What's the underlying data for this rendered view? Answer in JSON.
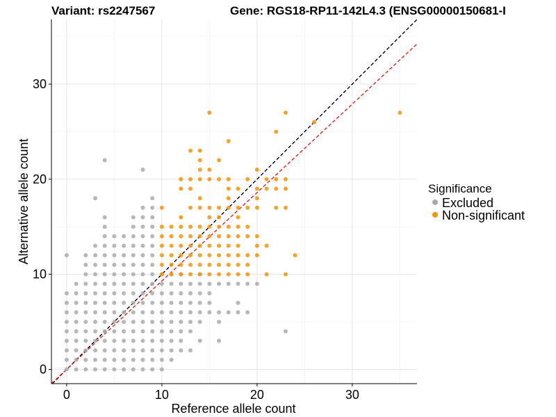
{
  "chart_data": {
    "type": "scatter",
    "title_left": "Variant: rs2247567",
    "title_right": "Gene: RGS18-RP11-142L4.3 (ENSG00000150681-I",
    "xlabel": "Reference allele count",
    "ylabel": "Alternative allele count",
    "xlim": [
      -1.6,
      36.8
    ],
    "ylim": [
      -1.5,
      36.8
    ],
    "xticks": [
      0,
      10,
      20,
      30
    ],
    "yticks": [
      0,
      10,
      20,
      30
    ],
    "grid": true,
    "legend": {
      "title": "Significance",
      "position": "right",
      "items": [
        {
          "label": "Excluded",
          "color": "#aaaaaa"
        },
        {
          "label": "Non-significant",
          "color": "#f5940a"
        }
      ]
    },
    "reference_lines": [
      {
        "color": "#000000",
        "style": "dashed",
        "slope": 1.0,
        "intercept": 0
      },
      {
        "color": "#e8231f",
        "style": "dashed",
        "slope": 0.93,
        "intercept": 0
      }
    ],
    "series": [
      {
        "name": "Excluded",
        "color": "#aaaaaa",
        "points": [
          [
            0,
            12
          ],
          [
            0,
            8
          ],
          [
            0,
            7
          ],
          [
            0,
            6
          ],
          [
            0,
            5
          ],
          [
            0,
            4
          ],
          [
            0,
            3
          ],
          [
            0,
            2
          ],
          [
            0,
            1
          ],
          [
            0,
            0
          ],
          [
            1,
            9
          ],
          [
            1,
            8
          ],
          [
            1,
            7
          ],
          [
            1,
            6
          ],
          [
            1,
            5
          ],
          [
            1,
            4
          ],
          [
            1,
            3
          ],
          [
            1,
            2
          ],
          [
            1,
            1
          ],
          [
            1,
            0
          ],
          [
            2,
            12
          ],
          [
            2,
            11
          ],
          [
            2,
            10
          ],
          [
            2,
            9
          ],
          [
            2,
            8
          ],
          [
            2,
            7
          ],
          [
            2,
            6
          ],
          [
            2,
            5
          ],
          [
            2,
            4
          ],
          [
            2,
            3
          ],
          [
            2,
            2
          ],
          [
            2,
            1
          ],
          [
            2,
            0
          ],
          [
            3,
            18
          ],
          [
            3,
            13
          ],
          [
            3,
            12
          ],
          [
            3,
            11
          ],
          [
            3,
            10
          ],
          [
            3,
            9
          ],
          [
            3,
            8
          ],
          [
            3,
            7
          ],
          [
            3,
            6
          ],
          [
            3,
            5
          ],
          [
            3,
            4
          ],
          [
            3,
            3
          ],
          [
            3,
            2
          ],
          [
            3,
            1
          ],
          [
            3,
            0
          ],
          [
            4,
            22
          ],
          [
            4,
            16
          ],
          [
            4,
            15
          ],
          [
            4,
            14
          ],
          [
            4,
            13
          ],
          [
            4,
            12
          ],
          [
            4,
            11
          ],
          [
            4,
            10
          ],
          [
            4,
            9
          ],
          [
            4,
            8
          ],
          [
            4,
            7
          ],
          [
            4,
            6
          ],
          [
            4,
            5
          ],
          [
            4,
            4
          ],
          [
            4,
            3
          ],
          [
            4,
            2
          ],
          [
            4,
            1
          ],
          [
            4,
            0
          ],
          [
            5,
            14
          ],
          [
            5,
            13
          ],
          [
            5,
            12
          ],
          [
            5,
            11
          ],
          [
            5,
            10
          ],
          [
            5,
            9
          ],
          [
            5,
            8
          ],
          [
            5,
            7
          ],
          [
            5,
            6
          ],
          [
            5,
            5
          ],
          [
            5,
            4
          ],
          [
            5,
            3
          ],
          [
            5,
            2
          ],
          [
            5,
            1
          ],
          [
            5,
            0
          ],
          [
            6,
            14
          ],
          [
            6,
            13
          ],
          [
            6,
            12
          ],
          [
            6,
            11
          ],
          [
            6,
            10
          ],
          [
            6,
            9
          ],
          [
            6,
            8
          ],
          [
            6,
            7
          ],
          [
            6,
            6
          ],
          [
            6,
            5
          ],
          [
            6,
            4
          ],
          [
            6,
            3
          ],
          [
            6,
            2
          ],
          [
            6,
            1
          ],
          [
            6,
            0
          ],
          [
            7,
            16
          ],
          [
            7,
            15
          ],
          [
            7,
            14
          ],
          [
            7,
            13
          ],
          [
            7,
            12
          ],
          [
            7,
            11
          ],
          [
            7,
            10
          ],
          [
            7,
            9
          ],
          [
            7,
            8
          ],
          [
            7,
            7
          ],
          [
            7,
            6
          ],
          [
            7,
            5
          ],
          [
            7,
            4
          ],
          [
            7,
            3
          ],
          [
            7,
            2
          ],
          [
            7,
            1
          ],
          [
            7,
            0
          ],
          [
            8,
            21
          ],
          [
            8,
            17
          ],
          [
            8,
            16
          ],
          [
            8,
            15
          ],
          [
            8,
            14
          ],
          [
            8,
            13
          ],
          [
            8,
            12
          ],
          [
            8,
            11
          ],
          [
            8,
            10
          ],
          [
            8,
            9
          ],
          [
            8,
            8
          ],
          [
            8,
            7
          ],
          [
            8,
            6
          ],
          [
            8,
            5
          ],
          [
            8,
            4
          ],
          [
            8,
            3
          ],
          [
            8,
            2
          ],
          [
            8,
            1
          ],
          [
            8,
            0
          ],
          [
            9,
            18
          ],
          [
            9,
            17
          ],
          [
            9,
            16
          ],
          [
            9,
            15
          ],
          [
            9,
            14
          ],
          [
            9,
            13
          ],
          [
            9,
            12
          ],
          [
            9,
            11
          ],
          [
            9,
            10
          ],
          [
            9,
            9
          ],
          [
            9,
            8
          ],
          [
            9,
            7
          ],
          [
            9,
            6
          ],
          [
            9,
            5
          ],
          [
            9,
            4
          ],
          [
            9,
            3
          ],
          [
            9,
            2
          ],
          [
            9,
            1
          ],
          [
            9,
            0
          ],
          [
            10,
            10
          ],
          [
            10,
            9
          ],
          [
            10,
            8
          ],
          [
            10,
            7
          ],
          [
            10,
            6
          ],
          [
            10,
            5
          ],
          [
            10,
            4
          ],
          [
            10,
            3
          ],
          [
            10,
            2
          ],
          [
            10,
            1
          ],
          [
            10,
            0
          ],
          [
            11,
            10
          ],
          [
            11,
            9
          ],
          [
            11,
            8
          ],
          [
            11,
            7
          ],
          [
            11,
            6
          ],
          [
            11,
            5
          ],
          [
            11,
            4
          ],
          [
            11,
            3
          ],
          [
            11,
            2
          ],
          [
            11,
            1
          ],
          [
            12,
            10
          ],
          [
            12,
            9
          ],
          [
            12,
            8
          ],
          [
            12,
            7
          ],
          [
            12,
            6
          ],
          [
            12,
            5
          ],
          [
            12,
            4
          ],
          [
            12,
            3
          ],
          [
            12,
            2
          ],
          [
            13,
            9
          ],
          [
            13,
            8
          ],
          [
            13,
            7
          ],
          [
            13,
            6
          ],
          [
            13,
            5
          ],
          [
            13,
            4
          ],
          [
            13,
            2
          ],
          [
            14,
            10
          ],
          [
            14,
            9
          ],
          [
            14,
            8
          ],
          [
            14,
            7
          ],
          [
            14,
            6
          ],
          [
            14,
            5
          ],
          [
            14,
            3
          ],
          [
            15,
            9
          ],
          [
            15,
            8
          ],
          [
            15,
            7
          ],
          [
            15,
            6
          ],
          [
            16,
            9
          ],
          [
            16,
            6
          ],
          [
            16,
            5
          ],
          [
            16,
            3
          ],
          [
            17,
            9
          ],
          [
            17,
            6
          ],
          [
            18,
            9
          ],
          [
            18,
            7
          ],
          [
            18,
            6
          ],
          [
            19,
            9
          ],
          [
            19,
            6
          ],
          [
            20,
            9
          ],
          [
            23,
            4
          ]
        ]
      },
      {
        "name": "Non-significant",
        "color": "#f5940a",
        "points": [
          [
            10,
            17
          ],
          [
            10,
            15
          ],
          [
            10,
            14
          ],
          [
            10,
            13
          ],
          [
            10,
            12
          ],
          [
            10,
            11
          ],
          [
            10,
            10
          ],
          [
            11,
            15
          ],
          [
            11,
            14
          ],
          [
            11,
            13
          ],
          [
            11,
            12
          ],
          [
            11,
            11
          ],
          [
            11,
            10
          ],
          [
            12,
            20
          ],
          [
            12,
            19
          ],
          [
            12,
            16
          ],
          [
            12,
            15
          ],
          [
            12,
            14
          ],
          [
            12,
            13
          ],
          [
            12,
            12
          ],
          [
            12,
            11
          ],
          [
            12,
            10
          ],
          [
            13,
            23
          ],
          [
            13,
            20
          ],
          [
            13,
            19
          ],
          [
            13,
            17
          ],
          [
            13,
            15
          ],
          [
            13,
            14
          ],
          [
            13,
            13
          ],
          [
            13,
            12
          ],
          [
            13,
            11
          ],
          [
            13,
            10
          ],
          [
            14,
            23
          ],
          [
            14,
            22
          ],
          [
            14,
            21
          ],
          [
            14,
            20
          ],
          [
            14,
            18
          ],
          [
            14,
            17
          ],
          [
            14,
            15
          ],
          [
            14,
            14
          ],
          [
            14,
            13
          ],
          [
            14,
            12
          ],
          [
            14,
            11
          ],
          [
            14,
            10
          ],
          [
            15,
            27
          ],
          [
            15,
            21
          ],
          [
            15,
            20
          ],
          [
            15,
            17
          ],
          [
            15,
            16
          ],
          [
            15,
            15
          ],
          [
            15,
            14
          ],
          [
            15,
            13
          ],
          [
            15,
            12
          ],
          [
            15,
            11
          ],
          [
            15,
            10
          ],
          [
            16,
            22
          ],
          [
            16,
            20
          ],
          [
            16,
            17
          ],
          [
            16,
            16
          ],
          [
            16,
            15
          ],
          [
            16,
            14
          ],
          [
            16,
            13
          ],
          [
            16,
            12
          ],
          [
            16,
            11
          ],
          [
            16,
            10
          ],
          [
            17,
            24
          ],
          [
            17,
            20
          ],
          [
            17,
            19
          ],
          [
            17,
            18
          ],
          [
            17,
            17
          ],
          [
            17,
            15
          ],
          [
            17,
            14
          ],
          [
            17,
            13
          ],
          [
            17,
            12
          ],
          [
            17,
            11
          ],
          [
            17,
            10
          ],
          [
            18,
            19
          ],
          [
            18,
            17
          ],
          [
            18,
            16
          ],
          [
            18,
            15
          ],
          [
            18,
            14
          ],
          [
            18,
            13
          ],
          [
            18,
            12
          ],
          [
            18,
            11
          ],
          [
            18,
            10
          ],
          [
            19,
            20
          ],
          [
            19,
            17
          ],
          [
            19,
            15
          ],
          [
            19,
            14
          ],
          [
            19,
            12
          ],
          [
            19,
            11
          ],
          [
            19,
            10
          ],
          [
            20,
            21
          ],
          [
            20,
            19
          ],
          [
            20,
            18
          ],
          [
            20,
            17
          ],
          [
            20,
            14
          ],
          [
            20,
            13
          ],
          [
            20,
            12
          ],
          [
            21,
            20
          ],
          [
            21,
            19
          ],
          [
            21,
            13
          ],
          [
            21,
            10
          ],
          [
            22,
            25
          ],
          [
            22,
            20
          ],
          [
            22,
            19
          ],
          [
            22,
            17
          ],
          [
            23,
            27
          ],
          [
            23,
            20
          ],
          [
            23,
            19
          ],
          [
            23,
            17
          ],
          [
            23,
            10
          ],
          [
            24,
            12
          ],
          [
            26,
            26
          ],
          [
            35,
            27
          ]
        ]
      }
    ]
  }
}
